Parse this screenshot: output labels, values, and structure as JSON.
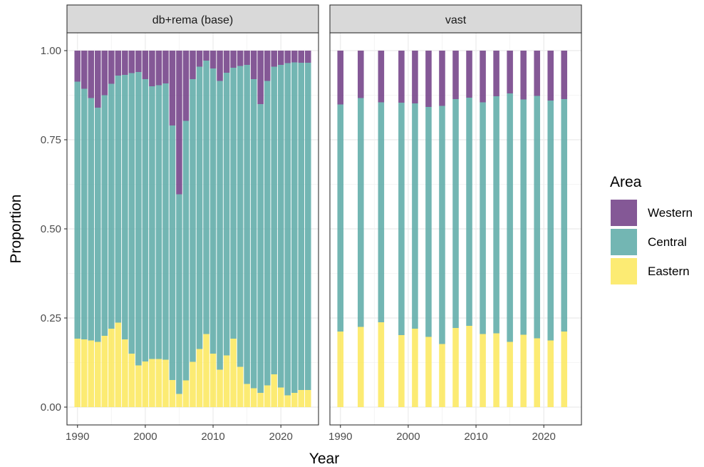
{
  "chart_data": {
    "type": "bar",
    "stacked": true,
    "xlabel": "Year",
    "ylabel": "Proportion",
    "ylim": [
      0,
      1
    ],
    "y_ticks": [
      "0.00",
      "0.25",
      "0.50",
      "0.75",
      "1.00"
    ],
    "x_ticks": [
      "1990",
      "2000",
      "2010",
      "2020"
    ],
    "grid": true,
    "legend": {
      "title": "Area",
      "position": "right",
      "entries": [
        {
          "name": "Western",
          "color": "#6f3b84"
        },
        {
          "name": "Central",
          "color": "#5aa9a6"
        },
        {
          "name": "Eastern",
          "color": "#fce85a"
        }
      ]
    },
    "panels": [
      {
        "title": "db+rema (base)",
        "x": [
          1990,
          1991,
          1992,
          1993,
          1994,
          1995,
          1996,
          1997,
          1998,
          1999,
          2000,
          2001,
          2002,
          2003,
          2004,
          2005,
          2006,
          2007,
          2008,
          2009,
          2010,
          2011,
          2012,
          2013,
          2014,
          2015,
          2016,
          2017,
          2018,
          2019,
          2020,
          2021,
          2022,
          2023,
          2024
        ],
        "series": [
          {
            "name": "Eastern",
            "values": [
              0.192,
              0.19,
              0.187,
              0.183,
              0.2,
              0.22,
              0.237,
              0.19,
              0.15,
              0.117,
              0.128,
              0.135,
              0.135,
              0.133,
              0.076,
              0.037,
              0.075,
              0.127,
              0.163,
              0.205,
              0.15,
              0.105,
              0.145,
              0.192,
              0.113,
              0.065,
              0.053,
              0.04,
              0.061,
              0.092,
              0.055,
              0.033,
              0.04,
              0.048,
              0.048
            ]
          },
          {
            "name": "Central",
            "values": [
              0.721,
              0.703,
              0.68,
              0.657,
              0.675,
              0.687,
              0.693,
              0.742,
              0.787,
              0.823,
              0.792,
              0.765,
              0.768,
              0.775,
              0.714,
              0.56,
              0.728,
              0.793,
              0.792,
              0.767,
              0.8,
              0.81,
              0.793,
              0.76,
              0.844,
              0.895,
              0.867,
              0.81,
              0.854,
              0.863,
              0.905,
              0.932,
              0.927,
              0.918,
              0.918
            ]
          },
          {
            "name": "Western",
            "values": [
              0.087,
              0.107,
              0.133,
              0.16,
              0.125,
              0.093,
              0.07,
              0.068,
              0.063,
              0.06,
              0.08,
              0.1,
              0.097,
              0.092,
              0.21,
              0.403,
              0.197,
              0.08,
              0.045,
              0.028,
              0.05,
              0.085,
              0.062,
              0.048,
              0.043,
              0.04,
              0.08,
              0.15,
              0.085,
              0.045,
              0.04,
              0.035,
              0.033,
              0.034,
              0.034
            ]
          }
        ]
      },
      {
        "title": "vast",
        "x": [
          1990,
          1993,
          1996,
          1999,
          2001,
          2003,
          2005,
          2007,
          2009,
          2011,
          2013,
          2015,
          2017,
          2019,
          2021,
          2023
        ],
        "series": [
          {
            "name": "Eastern",
            "values": [
              0.212,
              0.225,
              0.238,
              0.202,
              0.22,
              0.197,
              0.177,
              0.222,
              0.228,
              0.205,
              0.207,
              0.183,
              0.203,
              0.193,
              0.187,
              0.212
            ]
          },
          {
            "name": "Central",
            "values": [
              0.637,
              0.642,
              0.617,
              0.652,
              0.632,
              0.645,
              0.668,
              0.642,
              0.64,
              0.65,
              0.665,
              0.697,
              0.66,
              0.68,
              0.673,
              0.652
            ]
          },
          {
            "name": "Western",
            "values": [
              0.151,
              0.133,
              0.145,
              0.146,
              0.148,
              0.158,
              0.155,
              0.136,
              0.132,
              0.145,
              0.128,
              0.12,
              0.137,
              0.127,
              0.14,
              0.136
            ]
          }
        ]
      }
    ]
  }
}
